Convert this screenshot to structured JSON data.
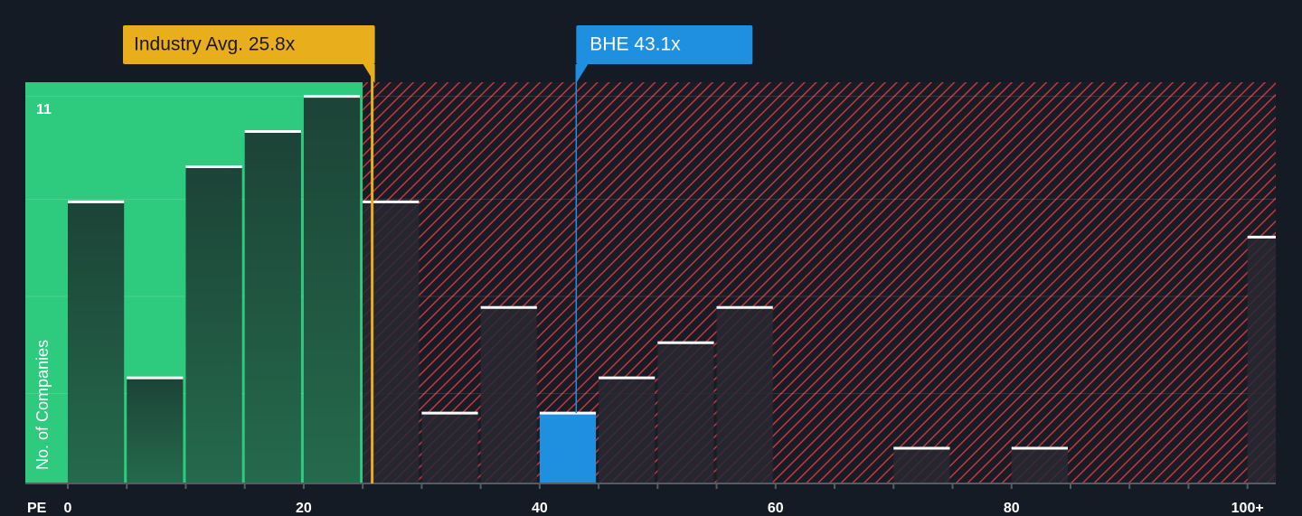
{
  "chart_data": {
    "type": "histogram",
    "x_label": "PE",
    "y_label": "No. of Companies",
    "bins": [
      0,
      5,
      10,
      15,
      20,
      25,
      30,
      35,
      40,
      45,
      50,
      55,
      60,
      65,
      70,
      75,
      80,
      85,
      90,
      95,
      100,
      105
    ],
    "values": [
      8,
      3,
      9,
      10,
      11,
      8,
      2,
      5,
      2,
      3,
      4,
      5,
      0,
      0,
      1,
      0,
      1,
      0,
      0,
      0,
      7
    ],
    "xlim": [
      -3.6,
      102.4
    ],
    "ylim": [
      0,
      11.4
    ],
    "xticks": [
      0,
      20,
      40,
      60,
      80,
      {
        "value": 100,
        "label": "100+"
      }
    ],
    "yticks": [
      11
    ],
    "industry": {
      "label": "Industry Avg. 25.8x",
      "value": 25.8,
      "color": "#e8ae1c"
    },
    "company": {
      "label": "BHE 43.1x",
      "value": 43.1,
      "color": "#1f8fe0"
    },
    "fair_color": "#2ecb7f",
    "over_color": "#d63a40"
  }
}
